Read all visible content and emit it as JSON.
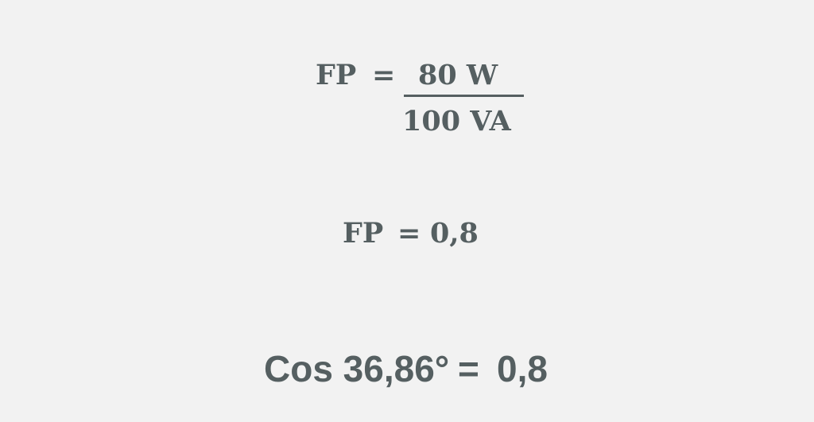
{
  "equation1": {
    "lhs": "FP",
    "eq": "=",
    "numerator": "80 W",
    "denominator": "100 VA"
  },
  "equation2": {
    "lhs": "FP",
    "eq": "=",
    "rhs": "0,8"
  },
  "equation3": {
    "lhs": "Cos 36,86°",
    "eq": "=",
    "rhs": "0,8"
  },
  "colors": {
    "text": "#555f61",
    "background": "#f2f2f2"
  }
}
